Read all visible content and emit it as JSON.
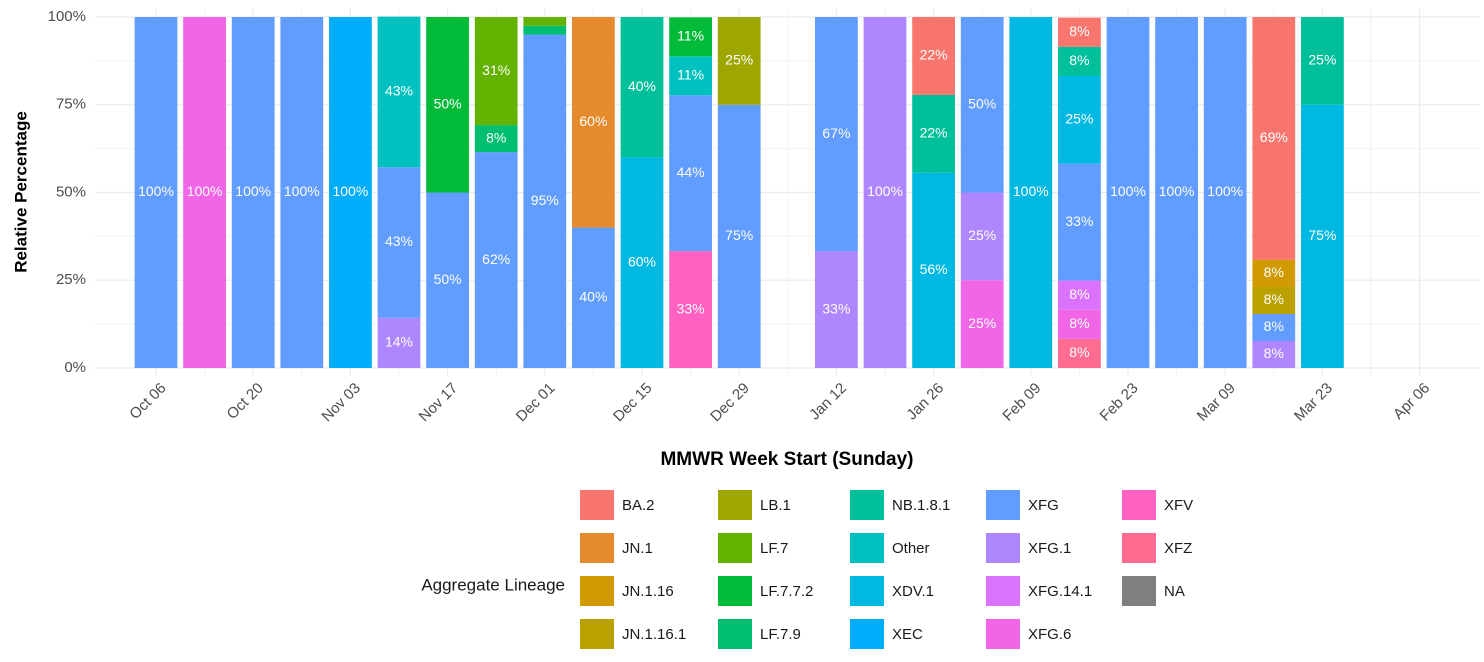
{
  "chart_data": {
    "type": "stacked_bar",
    "x_label": "MMWR Week Start (Sunday)",
    "y_label": "Relative Percentage",
    "legend_title": "Aggregate Lineage",
    "legend_position": "bottom",
    "grid": true,
    "categories": [
      "Oct 06",
      null,
      "Oct 20",
      null,
      "Nov 03",
      null,
      "Nov 17",
      null,
      "Dec 01",
      null,
      "Dec 15",
      null,
      "Dec 29",
      null,
      "Jan 12",
      null,
      "Jan 26",
      null,
      "Feb 09",
      null,
      "Feb 23",
      null,
      "Mar 09",
      null,
      "Mar 23",
      null,
      "Apr 06"
    ],
    "ylim": [
      0,
      100
    ],
    "yticks": [
      {
        "value": 0,
        "label": "0%"
      },
      {
        "value": 25,
        "label": "25%"
      },
      {
        "value": 50,
        "label": "50%"
      },
      {
        "value": 75,
        "label": "75%"
      },
      {
        "value": 100,
        "label": "100%"
      }
    ],
    "series": [
      {
        "name": "BA.2",
        "color": "#F8766D",
        "values": [
          null,
          null,
          null,
          null,
          null,
          null,
          null,
          null,
          null,
          null,
          null,
          null,
          null,
          null,
          null,
          null,
          22.2,
          null,
          null,
          8.3,
          null,
          null,
          null,
          69.2,
          null,
          null,
          null
        ],
        "value_labels": [
          null,
          null,
          null,
          null,
          null,
          null,
          null,
          null,
          null,
          null,
          null,
          null,
          null,
          null,
          null,
          null,
          "22%",
          null,
          null,
          "8%",
          null,
          null,
          null,
          "69%",
          null,
          null,
          null
        ]
      },
      {
        "name": "JN.1",
        "color": "#E58A2D",
        "values": [
          null,
          null,
          null,
          null,
          null,
          null,
          null,
          null,
          null,
          60,
          null,
          null,
          null,
          null,
          null,
          null,
          null,
          null,
          null,
          null,
          null,
          null,
          null,
          null,
          null,
          null,
          null
        ],
        "value_labels": [
          null,
          null,
          null,
          null,
          null,
          null,
          null,
          null,
          null,
          "60%",
          null,
          null,
          null,
          null,
          null,
          null,
          null,
          null,
          null,
          null,
          null,
          null,
          null,
          null,
          null,
          null,
          null
        ]
      },
      {
        "name": "JN.1.16",
        "color": "#D19A00",
        "values": [
          null,
          null,
          null,
          null,
          null,
          null,
          null,
          null,
          null,
          null,
          null,
          null,
          null,
          null,
          null,
          null,
          null,
          null,
          null,
          null,
          null,
          null,
          null,
          7.7,
          null,
          null,
          null
        ],
        "value_labels": [
          null,
          null,
          null,
          null,
          null,
          null,
          null,
          null,
          null,
          null,
          null,
          null,
          null,
          null,
          null,
          null,
          null,
          null,
          null,
          null,
          null,
          null,
          null,
          "8%",
          null,
          null,
          null
        ]
      },
      {
        "name": "JN.1.16.1",
        "color": "#BAA100",
        "values": [
          null,
          null,
          null,
          null,
          null,
          null,
          null,
          null,
          null,
          null,
          null,
          null,
          null,
          null,
          null,
          null,
          null,
          null,
          null,
          null,
          null,
          null,
          null,
          7.7,
          null,
          null,
          null
        ],
        "value_labels": [
          null,
          null,
          null,
          null,
          null,
          null,
          null,
          null,
          null,
          null,
          null,
          null,
          null,
          null,
          null,
          null,
          null,
          null,
          null,
          null,
          null,
          null,
          null,
          "8%",
          null,
          null,
          null
        ]
      },
      {
        "name": "LB.1",
        "color": "#9DA700",
        "values": [
          null,
          null,
          null,
          null,
          null,
          null,
          null,
          null,
          null,
          null,
          null,
          null,
          25,
          null,
          null,
          null,
          null,
          null,
          null,
          null,
          null,
          null,
          null,
          null,
          null,
          null,
          null
        ],
        "value_labels": [
          null,
          null,
          null,
          null,
          null,
          null,
          null,
          null,
          null,
          null,
          null,
          null,
          "25%",
          null,
          null,
          null,
          null,
          null,
          null,
          null,
          null,
          null,
          null,
          null,
          null,
          null,
          null
        ]
      },
      {
        "name": "LF.7",
        "color": "#63B200",
        "values": [
          null,
          null,
          null,
          null,
          null,
          null,
          null,
          30.8,
          2.5,
          null,
          null,
          null,
          null,
          null,
          null,
          null,
          null,
          null,
          null,
          null,
          null,
          null,
          null,
          null,
          null,
          null,
          null
        ],
        "value_labels": [
          null,
          null,
          null,
          null,
          null,
          null,
          null,
          "31%",
          null,
          null,
          null,
          null,
          null,
          null,
          null,
          null,
          null,
          null,
          null,
          null,
          null,
          null,
          null,
          null,
          null,
          null,
          null
        ]
      },
      {
        "name": "LF.7.7.2",
        "color": "#00BA38",
        "values": [
          null,
          null,
          null,
          null,
          null,
          null,
          50,
          null,
          null,
          null,
          null,
          11.1,
          null,
          null,
          null,
          null,
          null,
          null,
          null,
          null,
          null,
          null,
          null,
          null,
          null,
          null,
          null
        ],
        "value_labels": [
          null,
          null,
          null,
          null,
          null,
          null,
          "50%",
          null,
          null,
          null,
          null,
          "11%",
          null,
          null,
          null,
          null,
          null,
          null,
          null,
          null,
          null,
          null,
          null,
          null,
          null,
          null,
          null
        ]
      },
      {
        "name": "LF.7.9",
        "color": "#00BE70",
        "values": [
          null,
          null,
          null,
          null,
          null,
          null,
          null,
          7.7,
          2.5,
          null,
          null,
          null,
          null,
          null,
          null,
          null,
          null,
          null,
          null,
          null,
          null,
          null,
          null,
          null,
          null,
          null,
          null
        ],
        "value_labels": [
          null,
          null,
          null,
          null,
          null,
          null,
          null,
          "8%",
          null,
          null,
          null,
          null,
          null,
          null,
          null,
          null,
          null,
          null,
          null,
          null,
          null,
          null,
          null,
          null,
          null,
          null,
          null
        ]
      },
      {
        "name": "NB.1.8.1",
        "color": "#00C09B",
        "values": [
          null,
          null,
          null,
          null,
          null,
          null,
          null,
          null,
          null,
          null,
          40,
          null,
          null,
          null,
          null,
          null,
          22.2,
          null,
          null,
          8.3,
          null,
          null,
          null,
          null,
          25,
          null,
          null
        ],
        "value_labels": [
          null,
          null,
          null,
          null,
          null,
          null,
          null,
          null,
          null,
          null,
          "40%",
          null,
          null,
          null,
          null,
          null,
          "22%",
          null,
          null,
          "8%",
          null,
          null,
          null,
          null,
          "25%",
          null,
          null
        ]
      },
      {
        "name": "Other",
        "color": "#00C0C0",
        "values": [
          null,
          null,
          null,
          null,
          null,
          42.9,
          null,
          null,
          null,
          null,
          null,
          11.1,
          null,
          null,
          null,
          null,
          null,
          null,
          null,
          null,
          null,
          null,
          null,
          null,
          null,
          null,
          null
        ],
        "value_labels": [
          null,
          null,
          null,
          null,
          null,
          "43%",
          null,
          null,
          null,
          null,
          null,
          "11%",
          null,
          null,
          null,
          null,
          null,
          null,
          null,
          null,
          null,
          null,
          null,
          null,
          null,
          null,
          null
        ]
      },
      {
        "name": "XDV.1",
        "color": "#00B9E3",
        "values": [
          null,
          null,
          null,
          null,
          null,
          null,
          null,
          null,
          null,
          null,
          60,
          null,
          null,
          null,
          null,
          null,
          55.6,
          null,
          100,
          25,
          null,
          null,
          null,
          null,
          75,
          null,
          null
        ],
        "value_labels": [
          null,
          null,
          null,
          null,
          null,
          null,
          null,
          null,
          null,
          null,
          "60%",
          null,
          null,
          null,
          null,
          null,
          "56%",
          null,
          "100%",
          "25%",
          null,
          null,
          null,
          null,
          "75%",
          null,
          null
        ]
      },
      {
        "name": "XEC",
        "color": "#00ADFA",
        "values": [
          null,
          null,
          null,
          null,
          100,
          null,
          null,
          null,
          null,
          null,
          null,
          null,
          null,
          null,
          null,
          null,
          null,
          null,
          null,
          null,
          null,
          null,
          null,
          null,
          null,
          null,
          null
        ],
        "value_labels": [
          null,
          null,
          null,
          null,
          "100%",
          null,
          null,
          null,
          null,
          null,
          null,
          null,
          null,
          null,
          null,
          null,
          null,
          null,
          null,
          null,
          null,
          null,
          null,
          null,
          null,
          null,
          null
        ]
      },
      {
        "name": "XFG",
        "color": "#619CFF",
        "values": [
          100,
          null,
          100,
          100,
          null,
          42.9,
          50,
          61.5,
          95,
          40,
          null,
          44.4,
          75,
          null,
          66.7,
          null,
          null,
          50,
          null,
          33.3,
          100,
          100,
          100,
          7.7,
          null,
          null,
          null
        ],
        "value_labels": [
          "100%",
          null,
          "100%",
          "100%",
          null,
          "43%",
          "50%",
          "62%",
          "95%",
          "40%",
          null,
          "44%",
          "75%",
          null,
          "67%",
          null,
          null,
          "50%",
          null,
          "33%",
          "100%",
          "100%",
          "100%",
          "8%",
          null,
          null,
          null
        ]
      },
      {
        "name": "XFG.1",
        "color": "#AE87FF",
        "values": [
          null,
          null,
          null,
          null,
          null,
          14.3,
          null,
          null,
          null,
          null,
          null,
          null,
          null,
          null,
          33.3,
          100,
          null,
          25,
          null,
          null,
          null,
          null,
          null,
          7.7,
          null,
          null,
          null
        ],
        "value_labels": [
          null,
          null,
          null,
          null,
          null,
          "14%",
          null,
          null,
          null,
          null,
          null,
          null,
          null,
          null,
          "33%",
          "100%",
          null,
          "25%",
          null,
          null,
          null,
          null,
          null,
          "8%",
          null,
          null,
          null
        ]
      },
      {
        "name": "XFG.14.1",
        "color": "#DB72FB",
        "values": [
          null,
          null,
          null,
          null,
          null,
          null,
          null,
          null,
          null,
          null,
          null,
          null,
          null,
          null,
          null,
          null,
          null,
          null,
          null,
          8.3,
          null,
          null,
          null,
          null,
          null,
          null,
          null
        ],
        "value_labels": [
          null,
          null,
          null,
          null,
          null,
          null,
          null,
          null,
          null,
          null,
          null,
          null,
          null,
          null,
          null,
          null,
          null,
          null,
          null,
          "8%",
          null,
          null,
          null,
          null,
          null,
          null,
          null
        ]
      },
      {
        "name": "XFG.6",
        "color": "#F066E6",
        "values": [
          null,
          100,
          null,
          null,
          null,
          null,
          null,
          null,
          null,
          null,
          null,
          null,
          null,
          null,
          null,
          null,
          null,
          25,
          null,
          8.3,
          null,
          null,
          null,
          null,
          null,
          null,
          null
        ],
        "value_labels": [
          null,
          "100%",
          null,
          null,
          null,
          null,
          null,
          null,
          null,
          null,
          null,
          null,
          null,
          null,
          null,
          null,
          null,
          "25%",
          null,
          "8%",
          null,
          null,
          null,
          null,
          null,
          null,
          null
        ]
      },
      {
        "name": "XFV",
        "color": "#FF61C3",
        "values": [
          null,
          null,
          null,
          null,
          null,
          null,
          null,
          null,
          null,
          null,
          null,
          33.3,
          null,
          null,
          null,
          null,
          null,
          null,
          null,
          null,
          null,
          null,
          null,
          null,
          null,
          null,
          null
        ],
        "value_labels": [
          null,
          null,
          null,
          null,
          null,
          null,
          null,
          null,
          null,
          null,
          null,
          "33%",
          null,
          null,
          null,
          null,
          null,
          null,
          null,
          null,
          null,
          null,
          null,
          null,
          null,
          null,
          null
        ]
      },
      {
        "name": "XFZ",
        "color": "#FF6C91",
        "values": [
          null,
          null,
          null,
          null,
          null,
          null,
          null,
          null,
          null,
          null,
          null,
          null,
          null,
          null,
          null,
          null,
          null,
          null,
          null,
          8.3,
          null,
          null,
          null,
          null,
          null,
          null,
          null
        ],
        "value_labels": [
          null,
          null,
          null,
          null,
          null,
          null,
          null,
          null,
          null,
          null,
          null,
          null,
          null,
          null,
          null,
          null,
          null,
          null,
          null,
          "8%",
          null,
          null,
          null,
          null,
          null,
          null,
          null
        ]
      },
      {
        "name": "NA",
        "color": "#7F7F7F",
        "values": [
          null,
          null,
          null,
          null,
          null,
          null,
          null,
          null,
          null,
          null,
          null,
          null,
          null,
          null,
          null,
          null,
          null,
          null,
          null,
          null,
          null,
          null,
          null,
          null,
          null,
          null,
          null
        ]
      }
    ]
  }
}
